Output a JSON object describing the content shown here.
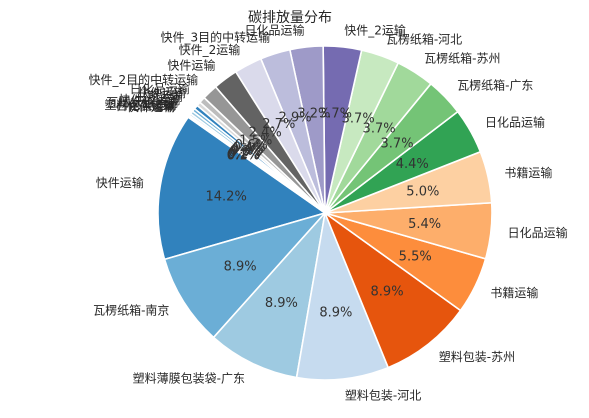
{
  "chart_data": {
    "type": "pie",
    "title": "碳排放量分布",
    "slices": [
      {
        "label": "快件运输",
        "value": 14.2,
        "pct_text": "14.2%",
        "color": "#3182bd"
      },
      {
        "label": "瓦楞纸箱-南京",
        "value": 8.9,
        "pct_text": "8.9%",
        "color": "#6baed6"
      },
      {
        "label": "塑料薄膜包装袋-广东",
        "value": 8.9,
        "pct_text": "8.9%",
        "color": "#9ecae1"
      },
      {
        "label": "塑料包装-河北",
        "value": 8.9,
        "pct_text": "8.9%",
        "color": "#c6dbef"
      },
      {
        "label": "塑料包装-苏州",
        "value": 8.9,
        "pct_text": "8.9%",
        "color": "#e6550d"
      },
      {
        "label": "书籍运输",
        "value": 5.5,
        "pct_text": "5.5%",
        "color": "#fd8d3c"
      },
      {
        "label": "日化品运输",
        "value": 5.4,
        "pct_text": "5.4%",
        "color": "#fdae6b"
      },
      {
        "label": "书籍运输",
        "value": 5.0,
        "pct_text": "5.0%",
        "color": "#fdd0a2"
      },
      {
        "label": "日化品运输",
        "value": 4.4,
        "pct_text": "4.4%",
        "color": "#31a354"
      },
      {
        "label": "瓦楞纸箱-广东",
        "value": 3.7,
        "pct_text": "3.7%",
        "color": "#74c476"
      },
      {
        "label": "瓦楞纸箱-苏州",
        "value": 3.7,
        "pct_text": "3.7%",
        "color": "#a1d99b"
      },
      {
        "label": "瓦楞纸箱-河北",
        "value": 3.7,
        "pct_text": "3.7%",
        "color": "#c7e9c0"
      },
      {
        "label": "快件_2运输",
        "value": 3.7,
        "pct_text": "3.7%",
        "color": "#756bb1"
      },
      {
        "label": "日化品运输",
        "value": 3.2,
        "pct_text": "3.2%",
        "color": "#9e9ac8"
      },
      {
        "label": "快件_3目的中转运输",
        "value": 2.9,
        "pct_text": "2.9%",
        "color": "#bcbddc"
      },
      {
        "label": "快件_2运输",
        "value": 2.7,
        "pct_text": "2.7%",
        "color": "#dadaeb"
      },
      {
        "label": "快件运输",
        "value": 2.4,
        "pct_text": "2.4%",
        "color": "#636363"
      },
      {
        "label": "快件_2目的中转运输",
        "value": 1.5,
        "pct_text": "1.5%",
        "color": "#969696"
      },
      {
        "label": "日化品运输",
        "value": 0.6,
        "pct_text": "0.6%",
        "color": "#bdbdbd"
      },
      {
        "label": "快件运输",
        "value": 0.4,
        "pct_text": "0.4%",
        "color": "#d9d9d9"
      },
      {
        "label": "书籍运输",
        "value": 0.4,
        "pct_text": "0.4%",
        "color": "#3182bd"
      },
      {
        "label": "快件_2运输",
        "value": 0.3,
        "pct_text": "0.3%",
        "color": "#6baed6"
      },
      {
        "label": "瓦楞纸箱运输",
        "value": 0.3,
        "pct_text": "0.3%",
        "color": "#9ecae1"
      },
      {
        "label": "塑料包装运输",
        "value": 0.2,
        "pct_text": "0.2%",
        "color": "#c6dbef"
      },
      {
        "label": "日化品运输",
        "value": 0.1,
        "pct_text": "0.1%",
        "color": "#e6550d"
      },
      {
        "label": "快件运输",
        "value": 0.1,
        "pct_text": "0.1%",
        "color": "#fd8d3c"
      }
    ]
  }
}
